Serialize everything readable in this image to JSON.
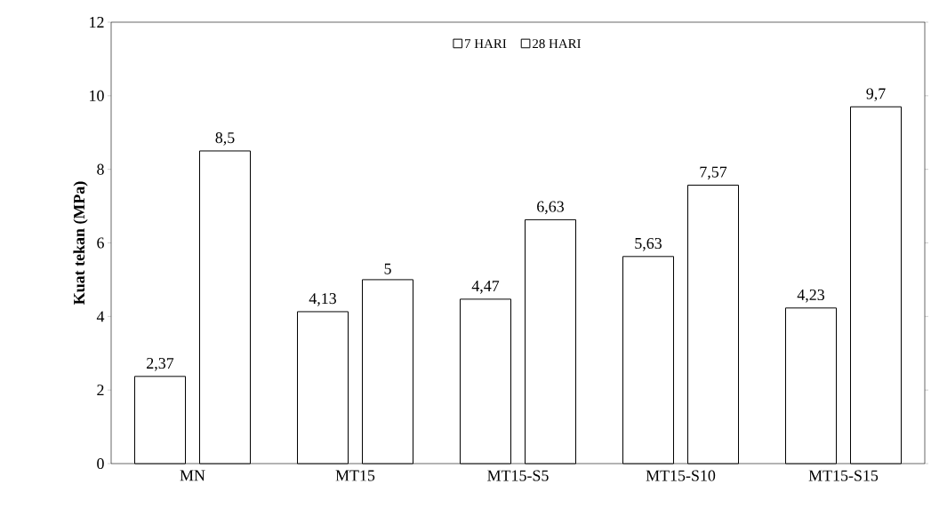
{
  "chart_data": {
    "type": "bar",
    "ylabel": "Kuat tekan (MPa)",
    "categories": [
      "MN",
      "MT15",
      "MT15-S5",
      "MT15-S10",
      "MT15-S15"
    ],
    "series": [
      {
        "name": "7 HARI",
        "color": "#ffffff",
        "values": [
          2.37,
          4.13,
          4.47,
          5.63,
          4.23
        ],
        "value_labels": [
          "2,37",
          "4,13",
          "4,47",
          "5,63",
          "4,23"
        ]
      },
      {
        "name": "28 HARI",
        "color": "#ffffff",
        "values": [
          8.5,
          5,
          6.63,
          7.57,
          9.7
        ],
        "value_labels": [
          "8,5",
          "5",
          "6,63",
          "7,57",
          "9,7"
        ]
      }
    ],
    "ylim": [
      0,
      12
    ],
    "yticks": [
      0,
      2,
      4,
      6,
      8,
      10,
      12
    ],
    "legend": "top",
    "grid": false
  }
}
